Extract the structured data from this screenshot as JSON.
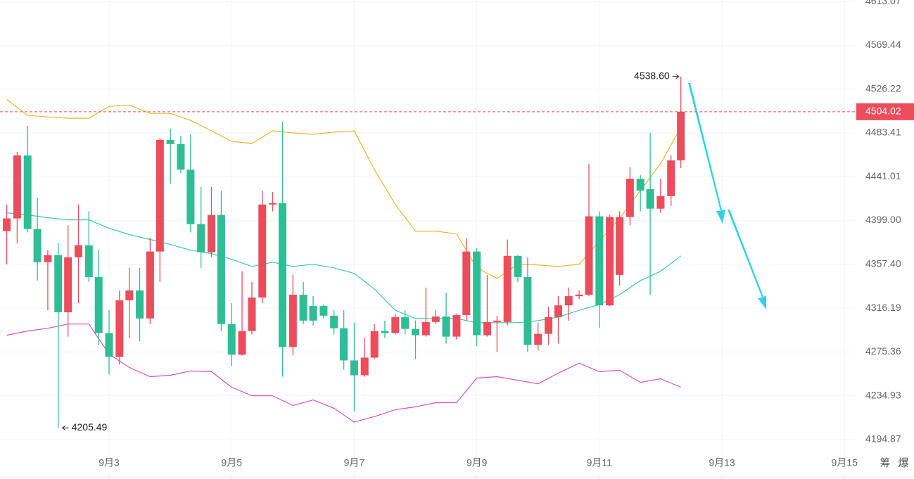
{
  "chart_data": {
    "type": "candlestick",
    "log_scale": true,
    "grid": true,
    "up_color": "#eb4d5c",
    "down_color": "#2ebd94",
    "xlim": [
      1.22,
      15.17
    ],
    "ylim": [
      4175.7,
      4614.5
    ],
    "xticks": [
      {
        "value": 3,
        "label": "9月3"
      },
      {
        "value": 5,
        "label": "9月5"
      },
      {
        "value": 7,
        "label": "9月7"
      },
      {
        "value": 9,
        "label": "9月9"
      },
      {
        "value": 11,
        "label": "9月11"
      },
      {
        "value": 13,
        "label": "9月13"
      },
      {
        "value": 15,
        "label": "9月15"
      }
    ],
    "yticks": [
      4613.07,
      4569.44,
      4526.22,
      4483.41,
      4441.01,
      {
        "value": 4399,
        "label": "4399.00"
      },
      {
        "value": 4357.4,
        "label": "4357.40"
      },
      4316.19,
      4275.36,
      4234.93,
      4194.87
    ],
    "x": [
      1.33,
      1.5,
      1.67,
      1.83,
      2,
      2.17,
      2.33,
      2.5,
      2.67,
      2.83,
      3,
      3.17,
      3.33,
      3.5,
      3.67,
      3.83,
      4,
      4.17,
      4.33,
      4.5,
      4.67,
      4.83,
      5,
      5.17,
      5.33,
      5.5,
      5.67,
      5.83,
      6,
      6.17,
      6.33,
      6.5,
      6.67,
      6.83,
      7,
      7.17,
      7.33,
      7.5,
      7.67,
      7.83,
      8,
      8.17,
      8.33,
      8.5,
      8.67,
      8.83,
      9,
      9.17,
      9.33,
      9.5,
      9.67,
      9.83,
      10,
      10.17,
      10.33,
      10.5,
      10.67,
      10.83,
      11,
      11.17,
      11.33,
      11.5,
      11.67,
      11.83,
      12,
      12.17,
      12.33
    ],
    "open": [
      4388.9,
      4401.0,
      4461.5,
      4390.9,
      4359.4,
      4366.1,
      4312.3,
      4364.1,
      4375.5,
      4345.4,
      4292.9,
      4270.8,
      4323.5,
      4332.8,
      4306.5,
      4369.5,
      4476.6,
      4472.5,
      4447.8,
      4395.6,
      4368.8,
      4404.3,
      4301.3,
      4272.8,
      4294.8,
      4326.1,
      4414.3,
      4415.7,
      4280.0,
      4328.8,
      4318.2,
      4318.2,
      4309.1,
      4297.4,
      4267.5,
      4253.8,
      4270.1,
      4294.8,
      4292.9,
      4307.8,
      4296.8,
      4290.9,
      4303.2,
      4308.4,
      4289.6,
      4309.7,
      4369.5,
      4290.9,
      4303.2,
      4303.2,
      4365.4,
      4345.4,
      4281.9,
      4292.2,
      4307.8,
      4318.8,
      4327.4,
      4328.8,
      4403.0,
      4318.8,
      4347.4,
      4402.3,
      4439.0,
      4429.0,
      4410.3,
      4422.3,
      4456.7
    ],
    "high": [
      4414.3,
      4465.0,
      4490.2,
      4421.0,
      4370.8,
      4377.5,
      4394.3,
      4414.3,
      4407.7,
      4370.8,
      4314.2,
      4332.8,
      4354.1,
      4354.1,
      4382.2,
      4478.6,
      4487.5,
      4480.7,
      4482.0,
      4431.0,
      4431.0,
      4427.7,
      4320.8,
      4350.8,
      4340.8,
      4427.7,
      4426.3,
      4494.3,
      4347.4,
      4340.8,
      4327.4,
      4319.5,
      4314.2,
      4314.2,
      4302.6,
      4288.3,
      4301.3,
      4304.5,
      4311.0,
      4314.2,
      4304.5,
      4335.5,
      4314.2,
      4330.8,
      4311.0,
      4382.2,
      4372.8,
      4347.4,
      4309.1,
      4380.9,
      4366.1,
      4364.1,
      4302.6,
      4317.5,
      4327.4,
      4335.5,
      4332.8,
      4453.3,
      4407.7,
      4404.3,
      4407.7,
      4449.9,
      4442.4,
      4483.4,
      4439.0,
      4461.5,
      4538.6
    ],
    "low": [
      4357.4,
      4377.5,
      4387.6,
      4342.1,
      4314.2,
      4205.49,
      4289.6,
      4320.8,
      4340.8,
      4281.9,
      4254.5,
      4263.6,
      4288.3,
      4285.1,
      4301.3,
      4340.8,
      4434.3,
      4444.4,
      4387.6,
      4354.1,
      4364.1,
      4294.8,
      4262.3,
      4272.1,
      4291.6,
      4320.8,
      4407.7,
      4252.5,
      4272.1,
      4301.3,
      4300.0,
      4306.5,
      4291.6,
      4259.1,
      4220.3,
      4252.5,
      4268.8,
      4288.3,
      4291.6,
      4291.6,
      4268.8,
      4289.6,
      4301.3,
      4283.2,
      4287.0,
      4304.5,
      4280.6,
      4289.6,
      4275.4,
      4300.0,
      4340.8,
      4275.4,
      4276.7,
      4281.9,
      4283.2,
      4304.5,
      4324.8,
      4327.4,
      4298.0,
      4318.2,
      4337.4,
      4394.3,
      4407.7,
      4328.8,
      4406.3,
      4413.0,
      4449.2
    ],
    "close": [
      4401.0,
      4461.5,
      4390.9,
      4359.4,
      4366.1,
      4312.3,
      4364.1,
      4375.5,
      4345.4,
      4292.9,
      4270.8,
      4323.5,
      4332.8,
      4306.5,
      4369.5,
      4476.6,
      4472.5,
      4447.8,
      4395.6,
      4368.8,
      4404.3,
      4301.3,
      4272.8,
      4294.8,
      4326.1,
      4414.3,
      4415.7,
      4280.0,
      4328.8,
      4304.5,
      4304.5,
      4309.1,
      4297.4,
      4267.5,
      4253.8,
      4270.1,
      4294.8,
      4292.9,
      4307.8,
      4296.8,
      4290.9,
      4303.2,
      4308.4,
      4289.6,
      4309.7,
      4369.5,
      4290.9,
      4303.2,
      4304.5,
      4365.4,
      4345.4,
      4281.9,
      4292.2,
      4307.8,
      4318.8,
      4327.4,
      4328.8,
      4403.0,
      4318.8,
      4402.3,
      4402.3,
      4439.0,
      4427.7,
      4410.3,
      4422.3,
      4456.7,
      4504.02
    ],
    "overlays": [
      {
        "color": "#f0b429",
        "x": [
          1.33,
          1.67,
          2,
          2.33,
          2.67,
          3,
          3.33,
          3.67,
          4,
          4.33,
          4.67,
          5,
          5.33,
          5.67,
          6,
          6.33,
          6.67,
          7,
          7.33,
          7.67,
          8,
          8.33,
          8.67,
          9,
          9.33,
          9.67,
          10,
          10.33,
          10.67,
          11,
          11.33,
          11.67,
          12,
          12.33
        ],
        "values": [
          4516.0,
          4500.4,
          4499.0,
          4497.7,
          4497.7,
          4509.2,
          4510.6,
          4502.4,
          4502.4,
          4495.6,
          4485.4,
          4475.2,
          4473.1,
          4485.4,
          4483.4,
          4482.0,
          4484.1,
          4485.4,
          4447.8,
          4414.3,
          4388.9,
          4388.9,
          4386.3,
          4354.1,
          4344.1,
          4357.4,
          4356.7,
          4355.4,
          4357.4,
          4379.5,
          4401.0,
          4427.7,
          4453.7,
          4488.7
        ]
      },
      {
        "color": "#3cc8a8",
        "x": [
          1.33,
          1.67,
          2,
          2.33,
          2.67,
          3,
          3.33,
          3.67,
          4,
          4.33,
          4.67,
          5,
          5.33,
          5.67,
          6,
          6.33,
          6.67,
          7,
          7.33,
          7.67,
          8,
          8.33,
          8.67,
          9,
          9.33,
          9.67,
          10,
          10.33,
          10.67,
          11,
          11.33,
          11.67,
          12,
          12.33
        ],
        "values": [
          4406.3,
          4404.3,
          4401.7,
          4399.7,
          4399.7,
          4391.6,
          4385.6,
          4380.9,
          4376.2,
          4370.8,
          4367.5,
          4362.1,
          4355.4,
          4359.4,
          4355.4,
          4357.4,
          4354.1,
          4348.8,
          4334.1,
          4314.2,
          4306.5,
          4306.5,
          4306.5,
          4302.6,
          4302.6,
          4302.6,
          4304.5,
          4307.8,
          4314.2,
          4319.5,
          4328.8,
          4342.1,
          4350.8,
          4365.4
        ]
      },
      {
        "color": "#d94fc0",
        "x": [
          1.33,
          1.67,
          2,
          2.33,
          2.67,
          3,
          3.33,
          3.67,
          4,
          4.33,
          4.67,
          5,
          5.33,
          5.67,
          6,
          6.33,
          6.67,
          7,
          7.33,
          7.67,
          8,
          8.33,
          8.67,
          9,
          9.33,
          9.67,
          10,
          10.33,
          10.67,
          11,
          11.33,
          11.67,
          12,
          12.33
        ],
        "values": [
          4290.9,
          4294.8,
          4297.4,
          4301.3,
          4301.3,
          4273.4,
          4261.0,
          4252.5,
          4253.8,
          4257.8,
          4257.1,
          4242.8,
          4234.9,
          4234.9,
          4226.0,
          4231.1,
          4223.5,
          4210.8,
          4215.9,
          4222.2,
          4224.8,
          4228.6,
          4228.6,
          4251.2,
          4252.5,
          4249.2,
          4245.9,
          4255.8,
          4264.9,
          4257.1,
          4258.4,
          4247.3,
          4250.6,
          4242.8
        ]
      }
    ],
    "last_price": {
      "value": 4504.02,
      "label": "4504.02",
      "color": "#eb4d5c"
    },
    "annotations": [
      {
        "value": 4538.6,
        "label": "4538.60",
        "x": 12.33
      },
      {
        "value": 4205.49,
        "label": "4205.49",
        "x": 2.17
      }
    ],
    "toolbar": [
      "筹",
      "爆"
    ]
  }
}
